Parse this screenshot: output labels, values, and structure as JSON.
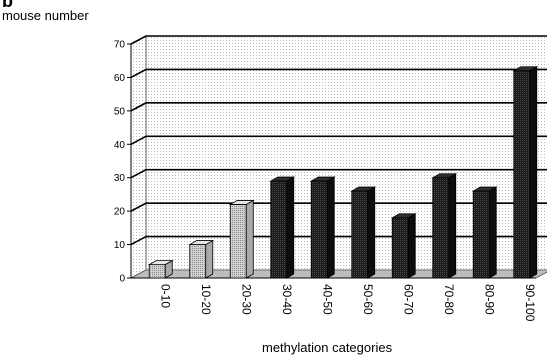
{
  "panel_label": "b",
  "chart_data": {
    "type": "bar",
    "title": "",
    "ylabel": "mouse number",
    "xlabel": "methylation categories",
    "ylim": [
      0,
      70
    ],
    "yticks": [
      0,
      10,
      20,
      30,
      40,
      50,
      60,
      70
    ],
    "grid": true,
    "legend": "none",
    "categories": [
      "0-10",
      "10-20",
      "20-30",
      "30-40",
      "40-50",
      "50-60",
      "60-70",
      "70-80",
      "80-90",
      "90-100"
    ],
    "values": [
      4,
      10,
      22,
      29,
      29,
      26,
      18,
      30,
      26,
      62
    ],
    "colors": {
      "light": "#c9c9c9",
      "dark": "#1b1b1b",
      "floor": "#bdbdbd",
      "grid": "#9a9a9a"
    },
    "bar_shade": [
      "light",
      "light",
      "light",
      "dark",
      "dark",
      "dark",
      "dark",
      "dark",
      "dark",
      "dark"
    ]
  }
}
